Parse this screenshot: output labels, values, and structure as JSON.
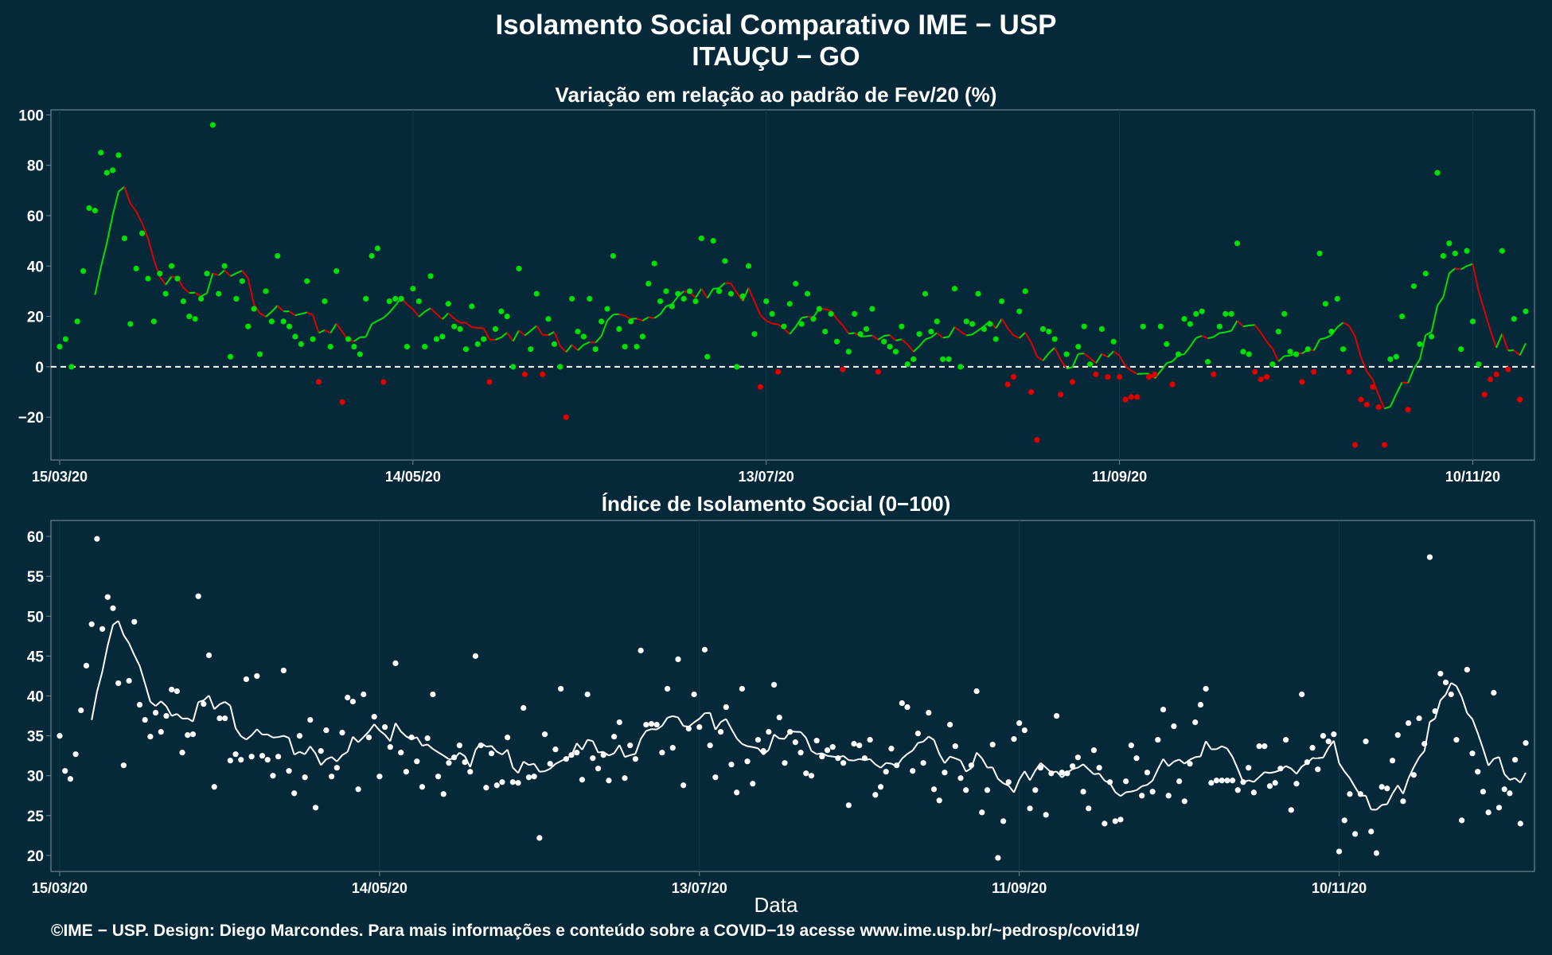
{
  "title": "Isolamento Social Comparativo IME − USP",
  "subtitle": "ITAUÇU − GO",
  "footer": "©IME − USP. Design: Diego Marcondes. Para mais informações e conteúdo sobre a COVID−19 acesse www.ime.usp.br/~pedrosp/covid19/",
  "colors": {
    "background": "#06293a",
    "positive": "#00e000",
    "negative": "#e00000",
    "index": "#ffffff",
    "panel_border": "#6a8691"
  },
  "chart_data": [
    {
      "type": "scatter",
      "title": "Variação em relação ao padrão de Fev/20 (%)",
      "xlabel": "",
      "ylabel": "",
      "x_start": "15/03/20",
      "x_ticks": [
        "15/03/20",
        "14/05/20",
        "13/07/20",
        "11/09/20",
        "10/11/20"
      ],
      "ylim": [
        -37,
        102
      ],
      "y_ticks": [
        -20,
        0,
        20,
        40,
        60,
        80,
        100
      ],
      "y_tick_labels": [
        "−20",
        "0",
        "20",
        "40",
        "60",
        "80",
        "100"
      ],
      "reference_line": 0,
      "legend": "none",
      "grid": true,
      "values": [
        8,
        11,
        0,
        18,
        38,
        63,
        62,
        85,
        77,
        78,
        84,
        51,
        17,
        39,
        53,
        35,
        18,
        37,
        29,
        40,
        35,
        26,
        20,
        19,
        27,
        37,
        96,
        29,
        40,
        4,
        27,
        34,
        16,
        23,
        5,
        30,
        18,
        44,
        18,
        16,
        12,
        9,
        34,
        11,
        -6,
        26,
        8,
        38,
        -14,
        11,
        8,
        5,
        27,
        44,
        47,
        -6,
        26,
        27,
        27,
        8,
        31,
        26,
        8,
        36,
        11,
        12,
        25,
        16,
        15,
        7,
        24,
        9,
        11,
        -6,
        15,
        22,
        20,
        0,
        39,
        -3,
        7,
        29,
        -3,
        19,
        9,
        0,
        -20,
        27,
        14,
        12,
        27,
        7,
        18,
        23,
        44,
        15,
        8,
        18,
        8,
        12,
        33,
        41,
        26,
        30,
        24,
        29,
        27,
        30,
        26,
        51,
        4,
        50,
        30,
        42,
        29,
        0,
        28,
        40,
        13,
        -8,
        26,
        21,
        -2,
        16,
        25,
        33,
        17,
        29,
        19,
        23,
        14,
        21,
        10,
        -1,
        6,
        21,
        13,
        15,
        23,
        -2,
        10,
        8,
        6,
        16,
        1,
        3,
        13,
        29,
        14,
        18,
        3,
        3,
        31,
        0,
        18,
        17,
        29,
        15,
        17,
        11,
        26,
        -7,
        -4,
        22,
        30,
        -10,
        -29,
        15,
        14,
        11,
        -11,
        5,
        -6,
        8,
        16,
        1,
        -3,
        15,
        -4,
        10,
        -4,
        -13,
        -12,
        -12,
        16,
        -4,
        -3,
        16,
        9,
        -7,
        5,
        19,
        17,
        21,
        22,
        2,
        -3,
        16,
        21,
        21,
        49,
        6,
        5,
        -2,
        -5,
        -4,
        1,
        14,
        21,
        6,
        5,
        -6,
        7,
        -2,
        45,
        25,
        14,
        27,
        7,
        -2,
        -31,
        -13,
        -15,
        -8,
        -16,
        -31,
        3,
        4,
        20,
        -17,
        32,
        9,
        37,
        12,
        77,
        44,
        49,
        45,
        7,
        46,
        18,
        1,
        -11,
        -5,
        -3,
        46,
        -1,
        19,
        -13,
        22
      ],
      "moving_average": [
        null,
        null,
        null,
        null,
        null,
        null,
        null,
        null,
        null,
        null,
        null,
        null,
        null,
        null,
        null,
        null,
        null,
        null,
        null,
        null,
        null,
        null,
        null,
        null,
        null,
        null,
        null,
        null,
        null,
        null,
        null,
        null,
        null,
        null,
        null,
        null,
        null,
        null,
        null,
        null,
        null,
        null,
        null,
        null,
        null,
        null,
        null,
        null,
        null,
        null,
        null,
        null,
        null,
        null,
        null,
        null,
        null,
        null,
        null,
        null,
        null,
        null,
        null,
        null,
        null,
        null,
        null,
        null,
        null,
        null,
        null,
        null,
        null,
        null,
        null,
        null,
        null,
        null,
        null,
        null,
        null,
        null,
        null,
        null,
        null,
        null,
        null,
        null,
        null,
        null,
        null,
        null,
        null,
        null,
        null,
        null,
        null,
        null,
        null,
        null,
        null,
        null,
        null,
        null,
        null,
        null,
        null,
        null,
        null,
        null,
        null,
        null,
        null,
        null,
        null,
        null,
        null,
        null,
        null,
        null,
        null,
        null,
        null,
        null,
        null,
        null,
        null,
        null,
        null,
        null,
        null,
        null,
        null,
        null,
        null,
        null,
        null,
        null,
        null,
        null,
        null,
        null,
        null,
        null,
        null,
        null,
        null,
        null,
        null,
        null,
        null,
        null,
        null,
        null,
        null,
        null,
        null,
        null,
        null,
        null,
        null,
        null,
        null,
        null,
        null,
        null,
        null,
        null,
        null,
        null,
        null,
        null,
        null,
        null,
        null,
        null,
        null,
        null,
        null,
        null,
        null,
        null,
        null,
        null,
        null,
        null,
        null,
        null,
        null,
        null,
        null,
        null,
        null,
        null,
        null,
        null,
        null,
        null,
        null,
        null,
        null,
        null,
        null,
        null,
        null,
        null,
        null,
        null,
        null,
        null,
        null,
        null,
        null,
        null,
        null,
        null,
        null,
        null,
        null,
        null,
        null,
        null,
        null,
        null,
        null,
        null,
        null,
        null,
        null,
        null,
        null,
        null,
        null,
        null,
        null,
        null,
        null,
        null,
        null,
        null,
        null,
        null,
        null,
        null,
        null,
        null,
        null,
        null,
        null,
        null,
        null,
        null,
        null,
        null,
        null,
        null,
        null,
        null,
        null,
        null,
        null,
        null,
        null,
        null,
        null,
        null,
        null,
        null,
        null,
        null
      ]
    },
    {
      "type": "scatter",
      "title": "Índice de Isolamento Social (0−100)",
      "xlabel": "Data",
      "ylabel": "",
      "x_start": "15/03/20",
      "x_ticks": [
        "15/03/20",
        "14/05/20",
        "13/07/20",
        "11/09/20",
        "10/11/20"
      ],
      "ylim": [
        18,
        62
      ],
      "y_ticks": [
        20,
        25,
        30,
        35,
        40,
        45,
        50,
        55,
        60
      ],
      "legend": "none",
      "grid": true,
      "values": [
        35,
        30.6,
        29.6,
        32.7,
        38.2,
        43.8,
        49,
        59.7,
        48.4,
        52.4,
        51,
        41.6,
        31.3,
        41.9,
        49.3,
        38.9,
        37,
        34.9,
        37.9,
        35.5,
        37.5,
        40.8,
        40.6,
        32.9,
        35.1,
        35.2,
        52.5,
        39,
        45.1,
        28.6,
        37.2,
        37.2,
        31.9,
        32.7,
        32,
        42.1,
        32.4,
        42.5,
        32.5,
        32,
        30,
        32.4,
        43.2,
        30.6,
        27.8,
        35,
        29.8,
        37,
        26,
        33.1,
        35.7,
        29.9,
        31,
        35.4,
        39.8,
        39.3,
        28.3,
        40.2,
        34.8,
        37.4,
        29.9,
        36.1,
        33.6,
        44.1,
        32.9,
        30.5,
        34.8,
        31.8,
        28.6,
        34.7,
        40.2,
        29.9,
        27.7,
        31.6,
        32.3,
        33.8,
        31.7,
        30.5,
        45,
        33.8,
        28.5,
        32.8,
        28.8,
        29.2,
        34.8,
        29.2,
        29.1,
        38.5,
        29.8,
        29.9,
        22.2,
        35.2,
        31.5,
        33.3,
        40.9,
        32.1,
        32.6,
        32.9,
        29.5,
        40.2,
        32.2,
        30.9,
        32.6,
        29.4,
        34.9,
        36.7,
        29.7,
        33.8,
        32.1,
        45.7,
        36.4,
        36.5,
        36.4,
        32.9,
        40.9,
        33.5,
        44.6,
        28.8,
        35.9,
        40.2,
        36.1,
        45.8,
        33.8,
        29.8,
        35.5,
        38.6,
        31.4,
        27.9,
        40.9,
        31.8,
        29,
        34.5,
        33.1,
        35.5,
        41.4,
        37.3,
        31.6,
        35.5,
        34.2,
        32.9,
        30.3,
        30,
        34.4,
        32.4,
        33.2,
        33.6,
        32.2,
        31.6,
        26.3,
        34,
        33.8,
        32.2,
        34.5,
        27.6,
        28.6,
        30.5,
        33.4,
        31.3,
        39.1,
        38.6,
        30.6,
        35.3,
        31.6,
        37.9,
        28.3,
        26.9,
        30.4,
        36.4,
        33.7,
        29.7,
        28.2,
        31.3,
        40.6,
        25.4,
        28.2,
        33.9,
        19.7,
        24.3,
        29.2,
        34.6,
        36.6,
        35.7,
        25.9,
        28.2,
        31,
        25.1,
        30.3,
        37.5,
        30.4,
        30.3,
        31.2,
        32.3,
        28,
        25.9,
        33.2,
        31,
        24,
        29.2,
        24.3,
        24.5,
        29.3,
        33.8,
        32.2,
        27.5,
        30.4,
        28,
        34.5,
        38.3,
        27.5,
        36.2,
        29.3,
        26.8,
        31.5,
        36.7,
        38.9,
        40.9,
        29.1,
        29.4,
        29.4,
        29.4,
        29.4,
        28.2,
        29.2,
        31,
        27.9,
        33.7,
        33.7,
        28.7,
        29.1,
        30.9,
        34.5,
        25.7,
        29,
        40.2,
        31.7,
        33.5,
        30.8,
        35,
        34.3,
        35.2,
        20.5,
        24.4,
        27.7,
        22.7,
        27.7,
        34.3,
        23,
        20.3,
        28.6,
        28.4,
        31.9,
        35.1,
        26.8,
        36.6,
        30.1,
        37.2,
        34,
        57.4,
        38.1,
        42.8,
        41.7,
        40.2,
        34.5,
        24.4,
        43.3,
        32.8,
        30.5,
        28,
        25.4,
        40.4,
        26,
        28.3,
        27.8,
        32,
        24,
        34.1
      ],
      "moving_average": [
        null,
        null,
        null,
        null,
        null,
        null,
        null,
        null,
        null,
        null,
        null,
        null,
        null,
        null,
        null,
        null,
        null,
        null,
        null,
        null,
        null,
        null,
        null,
        null,
        null,
        null,
        null,
        null,
        null,
        null,
        null,
        null,
        null,
        null,
        null,
        null,
        null,
        null,
        null,
        null,
        null,
        null,
        null,
        null,
        null,
        null,
        null,
        null,
        null,
        null,
        null,
        null,
        null,
        null,
        null,
        null,
        null,
        null,
        null,
        null,
        null,
        null,
        null,
        null,
        null,
        null,
        null,
        null,
        null,
        null,
        null,
        null,
        null,
        null,
        null,
        null,
        null,
        null,
        null,
        null,
        null,
        null,
        null,
        null,
        null,
        null,
        null,
        null,
        null,
        null,
        null,
        null,
        null,
        null,
        null,
        null,
        null,
        null,
        null,
        null,
        null,
        null,
        null,
        null,
        null,
        null,
        null,
        null,
        null,
        null,
        null,
        null,
        null,
        null,
        null,
        null,
        null,
        null,
        null,
        null,
        null,
        null,
        null,
        null,
        null,
        null,
        null,
        null,
        null,
        null,
        null,
        null,
        null,
        null,
        null,
        null,
        null,
        null,
        null,
        null,
        null,
        null,
        null,
        null,
        null,
        null,
        null,
        null,
        null,
        null,
        null,
        null,
        null,
        null,
        null,
        null,
        null,
        null,
        null,
        null,
        null,
        null,
        null,
        null,
        null,
        null,
        null,
        null,
        null,
        null,
        null,
        null,
        null,
        null,
        null,
        null,
        null,
        null,
        null,
        null,
        null,
        null,
        null,
        null,
        null,
        null,
        null,
        null,
        null,
        null,
        null,
        null,
        null,
        null,
        null,
        null,
        null,
        null,
        null,
        null,
        null,
        null,
        null,
        null,
        null,
        null,
        null,
        null,
        null,
        null,
        null,
        null,
        null,
        null,
        null,
        null,
        null,
        null,
        null,
        null,
        null,
        null,
        null,
        null,
        null,
        null,
        null,
        null,
        null,
        null,
        null,
        null,
        null,
        null,
        null,
        null,
        null,
        null,
        null,
        null,
        null,
        null,
        null,
        null,
        null,
        null,
        null,
        null,
        null,
        null,
        null,
        null,
        null,
        null,
        null,
        null,
        null,
        null,
        null,
        null,
        null,
        null,
        null,
        null,
        null,
        null,
        null,
        null,
        null,
        null,
        null,
        null
      ]
    }
  ]
}
